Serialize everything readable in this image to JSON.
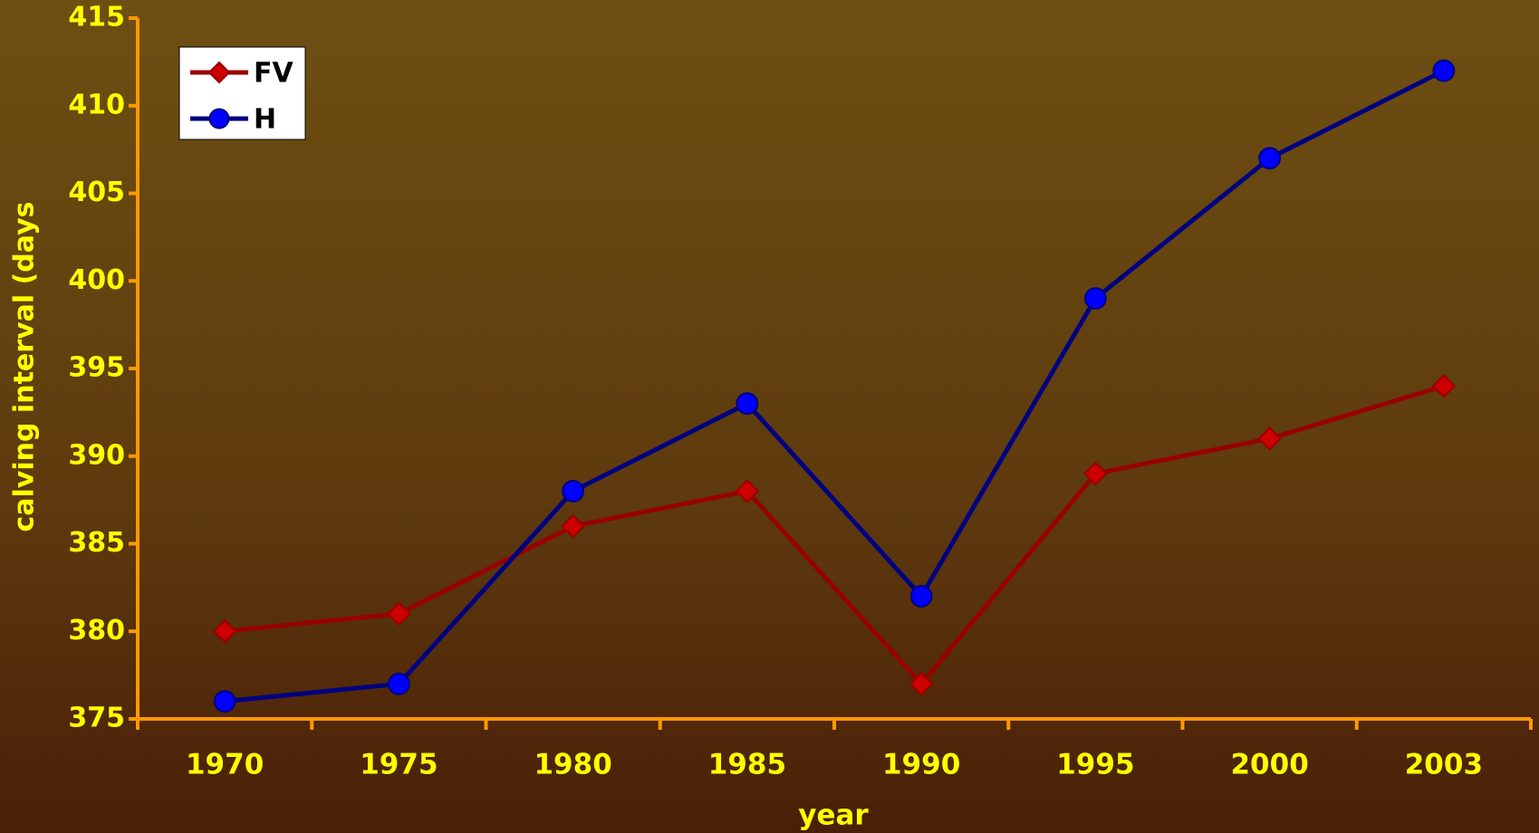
{
  "chart_data": {
    "type": "line",
    "x_label": "year",
    "y_label": "calving interval (days",
    "categories": [
      "1970",
      "1975",
      "1980",
      "1985",
      "1990",
      "1995",
      "2000",
      "2003"
    ],
    "series": [
      {
        "name": "FV",
        "color": "#990000",
        "marker": "diamond",
        "marker_color": "#cc0000",
        "values": [
          380,
          381,
          386,
          388,
          377,
          389,
          391,
          394
        ]
      },
      {
        "name": "H",
        "color": "#000080",
        "marker": "circle",
        "marker_color": "#0000ff",
        "values": [
          376,
          377,
          388,
          393,
          382,
          399,
          407,
          412
        ]
      }
    ],
    "ylim": [
      375,
      415
    ],
    "yticks": [
      375,
      380,
      385,
      390,
      395,
      400,
      405,
      410,
      415
    ],
    "grid": false,
    "legend": "top-left"
  }
}
